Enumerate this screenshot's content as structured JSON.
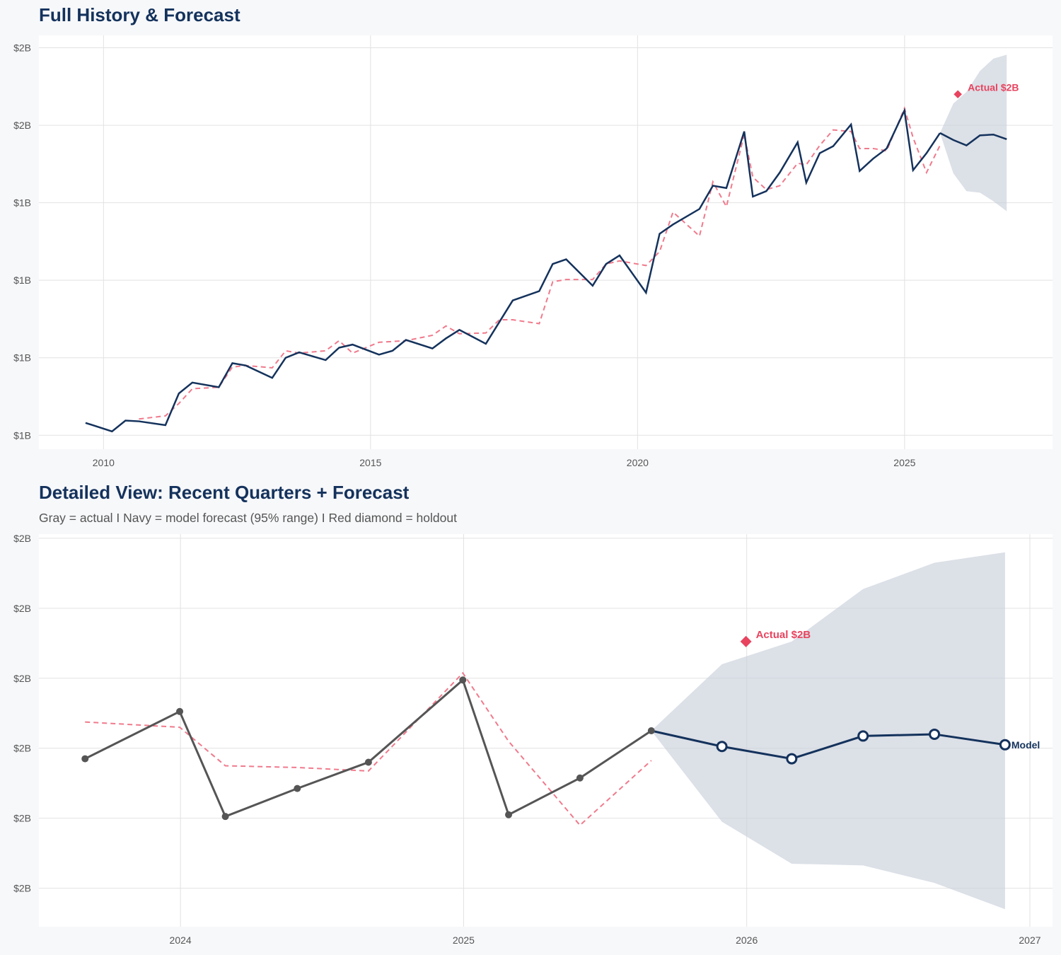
{
  "colors": {
    "background": "#f7f8fa",
    "actual_navy": "#14325c",
    "actual_gray": "#555555",
    "fitted": "#f07a8c",
    "holdout": "#e8445f",
    "band": "#c9d0da",
    "grid": "#e2e2e2"
  },
  "chart_data": [
    {
      "type": "line",
      "title": "Full History & Forecast",
      "xlim": [
        2008.79,
        2027.77
      ],
      "x_ticks": [
        2010,
        2015,
        2020,
        2025
      ],
      "x_tick_labels": [
        "2010",
        "2015",
        "2020",
        "2025"
      ],
      "ylim": [
        1.182,
        1.716
      ],
      "y_ticks": [
        1.2,
        1.3,
        1.4,
        1.5,
        1.6,
        1.7
      ],
      "y_tick_labels": [
        "$1B",
        "$1B",
        "$1B",
        "$1B",
        "$2B",
        "$2B"
      ],
      "grid": true,
      "actual": {
        "color": "#14325c",
        "style": "solid",
        "dates": [
          "2009-08-31",
          "2010-02-28",
          "2010-05-31",
          "2010-08-31",
          "2011-02-28",
          "2011-05-31",
          "2011-08-31",
          "2012-02-28",
          "2012-05-31",
          "2012-08-31",
          "2013-02-28",
          "2013-05-31",
          "2013-08-31",
          "2014-02-28",
          "2014-05-31",
          "2014-08-31",
          "2015-02-28",
          "2015-05-31",
          "2015-08-31",
          "2016-02-28",
          "2016-05-31",
          "2016-08-31",
          "2017-02-28",
          "2017-05-31",
          "2017-08-31",
          "2018-02-28",
          "2018-05-31",
          "2018-08-31",
          "2019-02-28",
          "2019-05-31",
          "2019-08-31",
          "2020-02-28",
          "2020-05-31",
          "2020-08-31",
          "2021-02-28",
          "2021-05-31",
          "2021-08-31",
          "2021-12-31",
          "2022-02-28",
          "2022-05-31",
          "2022-08-31",
          "2022-12-31",
          "2023-02-28",
          "2023-05-31",
          "2023-08-31",
          "2023-12-31",
          "2024-02-28",
          "2024-05-31",
          "2024-08-31",
          "2024-12-31",
          "2025-02-28",
          "2025-05-31",
          "2025-08-31"
        ],
        "values": [
          1.216,
          1.205,
          1.219,
          1.218,
          1.213,
          1.254,
          1.268,
          1.262,
          1.293,
          1.29,
          1.274,
          1.3,
          1.307,
          1.297,
          1.313,
          1.317,
          1.304,
          1.309,
          1.323,
          1.312,
          1.325,
          1.336,
          1.318,
          1.346,
          1.374,
          1.386,
          1.421,
          1.427,
          1.393,
          1.421,
          1.432,
          1.384,
          1.46,
          1.472,
          1.492,
          1.522,
          1.519,
          1.592,
          1.508,
          1.515,
          1.539,
          1.578,
          1.526,
          1.564,
          1.573,
          1.601,
          1.541,
          1.557,
          1.57,
          1.619,
          1.542,
          1.564,
          1.59
        ]
      },
      "fitted": {
        "color": "#f07a8c",
        "style": "dashed",
        "dates": [
          "2010-08-31",
          "2011-02-28",
          "2011-05-31",
          "2011-08-31",
          "2012-02-28",
          "2012-05-31",
          "2012-08-31",
          "2013-02-28",
          "2013-05-31",
          "2013-08-31",
          "2014-02-28",
          "2014-05-31",
          "2014-08-31",
          "2015-02-28",
          "2015-05-31",
          "2015-08-31",
          "2016-02-28",
          "2016-05-31",
          "2016-08-31",
          "2017-02-28",
          "2017-05-31",
          "2017-08-31",
          "2018-02-28",
          "2018-05-31",
          "2018-08-31",
          "2019-02-28",
          "2019-05-31",
          "2019-08-31",
          "2020-02-28",
          "2020-05-31",
          "2020-08-31",
          "2021-02-28",
          "2021-05-31",
          "2021-08-31",
          "2021-12-31",
          "2022-02-28",
          "2022-05-31",
          "2022-08-31",
          "2022-12-31",
          "2023-02-28",
          "2023-05-31",
          "2023-08-31",
          "2023-12-31",
          "2024-02-28",
          "2024-05-31",
          "2024-08-31",
          "2024-12-31",
          "2025-02-28",
          "2025-05-31",
          "2025-08-31"
        ],
        "values": [
          1.221,
          1.225,
          1.241,
          1.26,
          1.262,
          1.288,
          1.29,
          1.287,
          1.309,
          1.306,
          1.309,
          1.322,
          1.306,
          1.32,
          1.321,
          1.322,
          1.329,
          1.341,
          1.331,
          1.332,
          1.349,
          1.349,
          1.344,
          1.398,
          1.401,
          1.401,
          1.421,
          1.425,
          1.419,
          1.437,
          1.488,
          1.457,
          1.527,
          1.495,
          1.588,
          1.533,
          1.517,
          1.522,
          1.551,
          1.549,
          1.574,
          1.594,
          1.592,
          1.57,
          1.57,
          1.567,
          1.622,
          1.584,
          1.539,
          1.574
        ]
      },
      "forecast": {
        "color": "#14325c",
        "style": "solid",
        "markers": false,
        "dates": [
          "2025-08-31",
          "2025-11-30",
          "2026-02-28",
          "2026-05-31",
          "2026-08-31",
          "2026-11-30"
        ],
        "values": [
          1.59,
          1.581,
          1.574,
          1.587,
          1.588,
          1.582
        ]
      },
      "band": {
        "dates": [
          "2025-08-31",
          "2025-11-30",
          "2026-02-28",
          "2026-05-31",
          "2026-08-31",
          "2026-11-30"
        ],
        "upper": [
          1.59,
          1.628,
          1.643,
          1.67,
          1.686,
          1.691
        ],
        "lower": [
          1.59,
          1.538,
          1.515,
          1.513,
          1.502,
          1.489
        ]
      },
      "holdout": {
        "date": "2025-12-31",
        "value": 1.64,
        "label": "Actual $2B"
      }
    },
    {
      "type": "line",
      "title": "Detailed View: Recent Quarters + Forecast",
      "subtitle": "Gray = actual  I  Navy = model forecast (95% range)  I  Red diamond = holdout",
      "xlim": [
        2023.5,
        2027.08
      ],
      "x_ticks": [
        2024,
        2025,
        2026,
        2027
      ],
      "x_tick_labels": [
        "2024",
        "2025",
        "2026",
        "2027"
      ],
      "ylim": [
        1.478,
        1.7024
      ],
      "y_ticks": [
        1.5,
        1.54,
        1.58,
        1.62,
        1.66,
        1.7
      ],
      "y_tick_labels": [
        "$2B",
        "$2B",
        "$2B",
        "$2B",
        "$2B",
        "$2B"
      ],
      "grid": true,
      "actual": {
        "color": "#555555",
        "style": "solid",
        "markers": true,
        "dates": [
          "2023-08-31",
          "2023-12-31",
          "2024-02-28",
          "2024-05-31",
          "2024-08-31",
          "2024-12-31",
          "2025-02-28",
          "2025-05-31",
          "2025-08-31"
        ],
        "values": [
          1.574,
          1.601,
          1.541,
          1.557,
          1.572,
          1.619,
          1.542,
          1.563,
          1.59
        ]
      },
      "fitted": {
        "color": "#f07a8c",
        "style": "dashed",
        "dates": [
          "2023-08-31",
          "2023-12-31",
          "2024-02-28",
          "2024-05-31",
          "2024-08-31",
          "2024-12-31",
          "2025-02-28",
          "2025-05-31",
          "2025-08-31"
        ],
        "values": [
          1.595,
          1.592,
          1.57,
          1.569,
          1.567,
          1.623,
          1.584,
          1.536,
          1.573
        ]
      },
      "forecast": {
        "color": "#14325c",
        "style": "solid",
        "markers": "open-circle",
        "dates": [
          "2025-08-31",
          "2025-11-30",
          "2026-02-28",
          "2026-05-31",
          "2026-08-31",
          "2026-11-30"
        ],
        "values": [
          1.59,
          1.581,
          1.574,
          1.587,
          1.588,
          1.582
        ],
        "end_label": "Model"
      },
      "band": {
        "dates": [
          "2025-08-31",
          "2025-11-30",
          "2026-02-28",
          "2026-05-31",
          "2026-08-31",
          "2026-11-30"
        ],
        "upper": [
          1.59,
          1.628,
          1.641,
          1.671,
          1.686,
          1.692
        ],
        "lower": [
          1.59,
          1.538,
          1.514,
          1.513,
          1.503,
          1.488
        ]
      },
      "holdout": {
        "date": "2025-12-31",
        "value": 1.641,
        "label": "Actual $2B"
      }
    }
  ]
}
